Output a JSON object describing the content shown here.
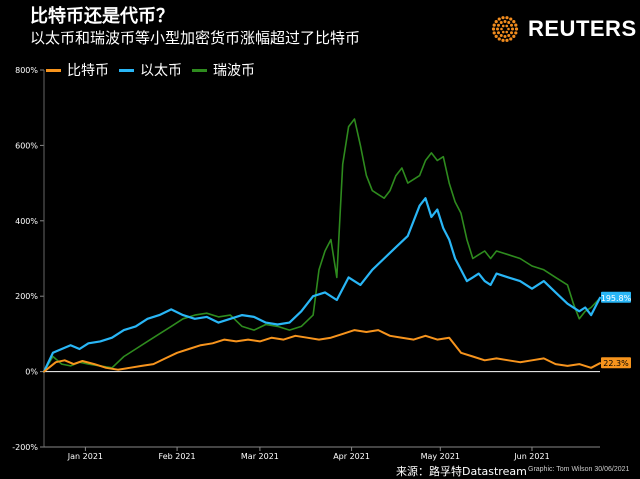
{
  "header": {
    "title": "比特币还是代币？",
    "subtitle": "以太币和瑞波币等小型加密货币涨幅超过了比特币"
  },
  "logo": {
    "text": "REUTERS"
  },
  "footer": {
    "source": "来源：路孚特Datastream",
    "credit": "Graphic: Tom Wilson 30/06/2021"
  },
  "colors": {
    "bitcoin": "#F7941D",
    "ethereum": "#29B6F6",
    "ripple": "#2E8B1E",
    "logo_orange": "#F28C1E"
  },
  "chart_data": {
    "type": "line",
    "xlabel": "",
    "ylabel": "",
    "ylim": [
      -200,
      800
    ],
    "yticks": [
      -200,
      0,
      200,
      400,
      600,
      800
    ],
    "ytick_labels": [
      "-200%",
      "0%",
      "200%",
      "400%",
      "600%",
      "800%"
    ],
    "xticks": [
      {
        "label": "Jan 2021",
        "x": 7
      },
      {
        "label": "Feb 2021",
        "x": 38
      },
      {
        "label": "Mar 2021",
        "x": 66
      },
      {
        "label": "Apr 2021",
        "x": 97
      },
      {
        "label": "May 2021",
        "x": 127
      },
      {
        "label": "Jun 2021",
        "x": 158
      }
    ],
    "x_range": [
      -7,
      181
    ],
    "grid": false,
    "legend_position": "top-left",
    "end_labels": {
      "ethereum": "195.8%",
      "bitcoin": "22.3%"
    },
    "series": [
      {
        "key": "bitcoin",
        "name": "比特币",
        "x": [
          -7,
          -3,
          0,
          3,
          6,
          10,
          14,
          18,
          22,
          26,
          30,
          34,
          38,
          42,
          46,
          50,
          54,
          58,
          62,
          66,
          70,
          74,
          78,
          82,
          86,
          90,
          94,
          98,
          102,
          106,
          110,
          114,
          118,
          122,
          126,
          130,
          134,
          138,
          142,
          146,
          150,
          154,
          158,
          162,
          166,
          170,
          174,
          178,
          181
        ],
        "values": [
          0,
          25,
          30,
          20,
          28,
          20,
          10,
          5,
          10,
          15,
          20,
          35,
          50,
          60,
          70,
          75,
          85,
          80,
          85,
          80,
          90,
          85,
          95,
          90,
          85,
          90,
          100,
          110,
          105,
          110,
          95,
          90,
          85,
          95,
          85,
          90,
          50,
          40,
          30,
          35,
          30,
          25,
          30,
          35,
          20,
          15,
          20,
          10,
          22.3
        ]
      },
      {
        "key": "ethereum",
        "name": "以太币",
        "x": [
          -7,
          -4,
          -1,
          2,
          5,
          8,
          12,
          16,
          20,
          24,
          28,
          32,
          36,
          40,
          44,
          48,
          52,
          56,
          60,
          64,
          68,
          72,
          76,
          80,
          84,
          88,
          92,
          96,
          100,
          104,
          108,
          112,
          116,
          120,
          122,
          124,
          126,
          128,
          130,
          132,
          134,
          136,
          138,
          140,
          142,
          144,
          146,
          150,
          154,
          158,
          162,
          166,
          170,
          174,
          176,
          178,
          181
        ],
        "values": [
          0,
          50,
          60,
          70,
          60,
          75,
          80,
          90,
          110,
          120,
          140,
          150,
          165,
          150,
          140,
          145,
          130,
          140,
          150,
          145,
          130,
          125,
          130,
          160,
          200,
          210,
          190,
          250,
          230,
          270,
          300,
          330,
          360,
          440,
          460,
          410,
          430,
          380,
          350,
          300,
          270,
          240,
          250,
          260,
          240,
          230,
          260,
          250,
          240,
          220,
          240,
          210,
          180,
          160,
          170,
          150,
          195.8
        ]
      },
      {
        "key": "ripple",
        "name": "瑞波币",
        "x": [
          -7,
          -4,
          -1,
          2,
          5,
          8,
          12,
          16,
          20,
          24,
          28,
          32,
          36,
          40,
          44,
          48,
          52,
          56,
          60,
          64,
          68,
          72,
          76,
          80,
          84,
          86,
          88,
          90,
          92,
          94,
          96,
          98,
          100,
          102,
          104,
          106,
          108,
          110,
          112,
          114,
          116,
          118,
          120,
          122,
          124,
          126,
          128,
          130,
          132,
          134,
          136,
          138,
          140,
          142,
          144,
          146,
          150,
          154,
          158,
          162,
          166,
          170,
          172,
          174,
          176,
          178,
          181
        ],
        "values": [
          0,
          40,
          20,
          15,
          25,
          20,
          15,
          10,
          40,
          60,
          80,
          100,
          120,
          140,
          150,
          155,
          145,
          150,
          120,
          110,
          125,
          120,
          110,
          120,
          150,
          270,
          320,
          350,
          250,
          550,
          650,
          670,
          600,
          520,
          480,
          470,
          460,
          480,
          520,
          540,
          500,
          510,
          520,
          560,
          580,
          560,
          570,
          500,
          450,
          420,
          350,
          300,
          310,
          320,
          300,
          320,
          310,
          300,
          280,
          270,
          250,
          230,
          180,
          140,
          160,
          170,
          195
        ]
      }
    ]
  }
}
